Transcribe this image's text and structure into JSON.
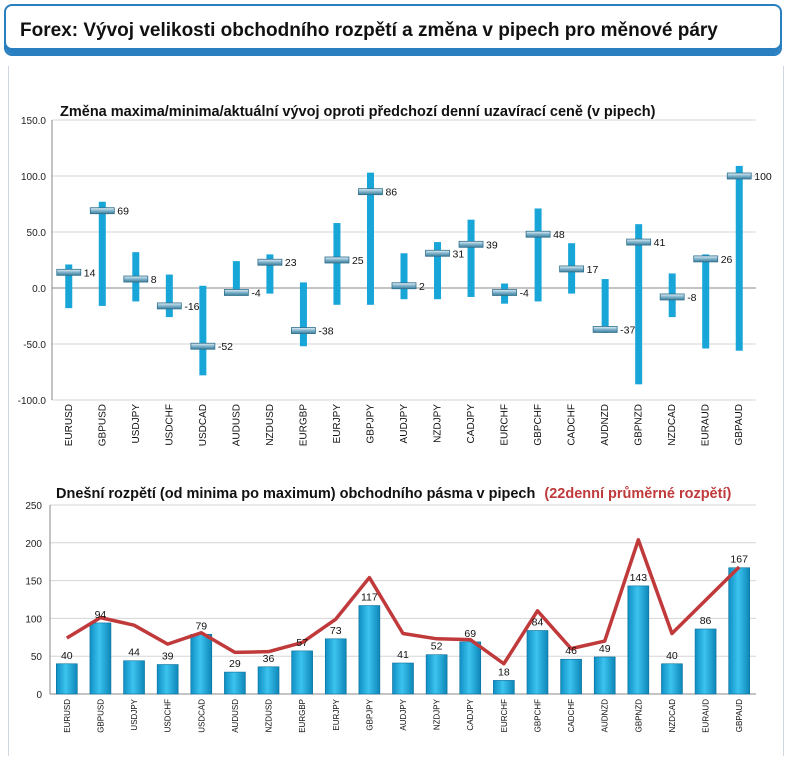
{
  "header": {
    "title": "Forex: Vývoj velikosti obchodního rozpětí a změna v pipech pro měnové páry"
  },
  "colors": {
    "accent": "#2a7fc1",
    "bar": "#18a5d8",
    "avg_line": "#c0393b",
    "marker": "#2a9fd0"
  },
  "chart_data": [
    {
      "type": "range",
      "title": "Změna maxima/minima/aktuální vývoj oproti předchozí denní uzavírací ceně (v pipech)",
      "categories": [
        "EURUSD",
        "GBPUSD",
        "USDJPY",
        "USDCHF",
        "USDCAD",
        "AUDUSD",
        "NZDUSD",
        "EURGBP",
        "EURJPY",
        "GBPJPY",
        "AUDJPY",
        "NZDJPY",
        "CADJPY",
        "EURCHF",
        "GBPCHF",
        "CADCHF",
        "AUDNZD",
        "GBPNZD",
        "NZDCAD",
        "EURAUD",
        "GBPAUD"
      ],
      "high": [
        21,
        77,
        32,
        12,
        2,
        24,
        30,
        5,
        58,
        103,
        31,
        41,
        61,
        4,
        71,
        40,
        8,
        57,
        13,
        30,
        109
      ],
      "low": [
        -18,
        -16,
        -12,
        -26,
        -78,
        -2,
        -5,
        -52,
        -15,
        -15,
        -10,
        -10,
        -8,
        -14,
        -12,
        -5,
        -40,
        -86,
        -26,
        -54,
        -56
      ],
      "current": [
        14,
        69,
        8,
        -16,
        -52,
        -4,
        23,
        -38,
        25,
        86,
        2,
        31,
        39,
        -4,
        48,
        17,
        -37,
        41,
        -8,
        26,
        100
      ],
      "current_labels": [
        "14",
        "69",
        "8",
        "-16",
        "-52",
        "-4",
        "23",
        "-38",
        "25",
        "86",
        "2",
        "31",
        "39",
        "-4",
        "48",
        "17",
        "-37",
        "41",
        "-8",
        "26",
        "100"
      ],
      "ylim": [
        -100,
        150
      ],
      "yticks": [
        "-100.0",
        "-50.0",
        "0.0",
        "50.0",
        "100.0",
        "150.0"
      ],
      "grid": true
    },
    {
      "type": "bar",
      "title": "Dnešní rozpětí (od minima po maximum) obchodního pásma v pipech",
      "title_highlight": "(22denní průměrné rozpětí)",
      "categories": [
        "EURUSD",
        "GBPUSD",
        "USDJPY",
        "USDCHF",
        "USDCAD",
        "AUDUSD",
        "NZDUSD",
        "EURGBP",
        "EURJPY",
        "GBPJPY",
        "AUDJPY",
        "NZDJPY",
        "CADJPY",
        "EURCHF",
        "GBPCHF",
        "CADCHF",
        "AUDNZD",
        "GBPNZD",
        "NZDCAD",
        "EURAUD",
        "GBPAUD"
      ],
      "series": [
        {
          "values": [
            40,
            94,
            44,
            39,
            79,
            29,
            36,
            57,
            73,
            117,
            41,
            52,
            69,
            18,
            84,
            46,
            49,
            143,
            40,
            86,
            167
          ]
        },
        {
          "type": "line",
          "values": [
            74,
            101,
            91,
            66,
            81,
            55,
            56,
            68,
            99,
            154,
            80,
            73,
            72,
            40,
            110,
            60,
            70,
            204,
            80,
            124,
            168
          ]
        }
      ],
      "value_labels": [
        "40",
        "94",
        "44",
        "39",
        "79",
        "29",
        "36",
        "57",
        "73",
        "117",
        "41",
        "52",
        "69",
        "18",
        "84",
        "46",
        "49",
        "143",
        "40",
        "86",
        "167"
      ],
      "ylim": [
        0,
        250
      ],
      "yticks": [
        "0",
        "50",
        "100",
        "150",
        "200",
        "250"
      ],
      "grid": true
    }
  ]
}
